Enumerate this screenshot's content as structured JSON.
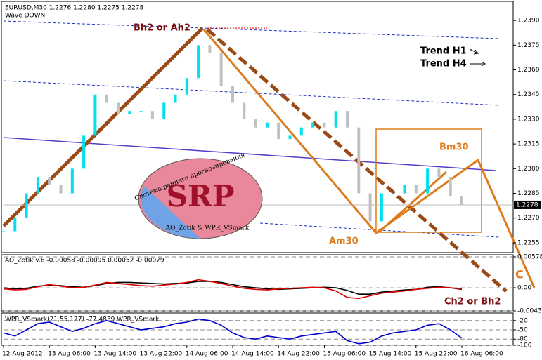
{
  "chart_data": [
    {
      "type": "line",
      "title": "EURUSD,M30 1.2276 1.2280 1.2275 1.2278",
      "subtitle": "Wave DOWN",
      "categories": [
        "12 Aug 2012",
        null,
        null,
        null,
        "13 Aug 06:00",
        null,
        null,
        null,
        "13 Aug 14:00",
        null,
        null,
        null,
        "13 Aug 22:00",
        null,
        null,
        null,
        "14 Aug 06:00",
        null,
        null,
        null,
        "14 Aug 14:00",
        null,
        null,
        null,
        "14 Aug 22:00",
        null,
        null,
        null,
        "15 Aug 06:00",
        null,
        null,
        null,
        "15 Aug 14:00",
        null,
        null,
        null,
        "15 Aug 22:00",
        null,
        null,
        null,
        "16 Aug 06:00"
      ],
      "values": [
        1.2262,
        1.227,
        1.2285,
        1.2295,
        1.229,
        1.2285,
        1.23,
        1.232,
        1.2345,
        1.234,
        1.2333,
        1.2335,
        1.2335,
        1.233,
        1.234,
        1.2345,
        1.2355,
        1.2375,
        1.237,
        1.235,
        1.234,
        1.233,
        1.2325,
        1.2328,
        1.2318,
        1.232,
        1.2325,
        1.2328,
        1.2325,
        1.2335,
        1.2325,
        1.2285,
        1.2268,
        1.2285,
        1.2285,
        1.229,
        1.2285,
        1.23,
        1.2295,
        1.2283,
        1.2278
      ],
      "color": "#00e0ee",
      "ylim": [
        1.2249,
        1.2399
      ],
      "yticks": [
        1.2255,
        {
          "value": 1.227,
          "label": "1.2270"
        },
        1.2285,
        {
          "value": 1.23,
          "label": "1.2300"
        },
        1.2315,
        {
          "value": 1.233,
          "label": "1.2330"
        },
        1.2345,
        {
          "value": 1.236,
          "label": "1.2360"
        },
        1.2375,
        {
          "value": 1.239,
          "label": "1.2390"
        }
      ],
      "annotations": [
        "Bh2  or Ah2",
        "Trend H1",
        "Trend H4",
        "Bm30",
        "Am30",
        "C",
        "Ch2  or Bh2",
        "SRP",
        "Система раннего прогнозирования",
        "AO_Zotik & WPR_VSmark"
      ]
    },
    {
      "type": "line",
      "title": "AO_Zotik v.8 -0.00058 -0.00095 0.00052 -0.00079",
      "series": [
        {
          "color": "#000000",
          "values": [
            0,
            -0.0002,
            -0.0001,
            0.0003,
            0.0005,
            0.0004,
            0.0002,
            0.0001,
            0.0004,
            0.0008,
            0.001,
            0.001,
            0.0009,
            0.0008,
            0.0007,
            0.0008,
            0.0009,
            0.0012,
            0.0012,
            0.001,
            0.0006,
            0.0002,
            0,
            -0.0002,
            -0.0003,
            -0.0002,
            -0.0001,
            0,
            0.0001,
            0,
            -0.0005,
            -0.0012,
            -0.0012,
            -0.0008,
            -0.0006,
            -0.0004,
            -0.0003,
            0.0001,
            0.0002,
            0,
            -0.0003
          ]
        },
        {
          "color": "#dd0000",
          "values": [
            -0.0002,
            -0.0004,
            -0.0003,
            0.0002,
            0.0006,
            0.0003,
            0,
            0.0001,
            0.0005,
            0.001,
            0.0008,
            0.0006,
            0.0004,
            0.0003,
            0.0005,
            0.0007,
            0.001,
            0.0015,
            0.0012,
            0.0008,
            0.0003,
            -0.0001,
            -0.0003,
            -0.0004,
            -0.0002,
            -0.0001,
            0,
            0.0001,
            0,
            -0.0006,
            -0.0018,
            -0.002,
            -0.0015,
            -0.001,
            -0.0008,
            -0.0006,
            -0.0003,
            -0.0001,
            0.0001,
            0,
            -0.0002
          ]
        }
      ],
      "ylim": [
        -0.00432,
        0.00578
      ],
      "yticks": [
        0.00578,
        {
          "value": 0,
          "label": "0.00"
        },
        -0.00432
      ]
    },
    {
      "type": "line",
      "title": "WPR_VSmark(21,55,177) -77.4839 WPR_VSmark",
      "series": [
        {
          "color": "#0000cc",
          "values": [
            -60,
            -70,
            -50,
            -30,
            -25,
            -40,
            -55,
            -45,
            -30,
            -20,
            -30,
            -40,
            -50,
            -45,
            -40,
            -30,
            -25,
            -15,
            -20,
            -35,
            -60,
            -75,
            -80,
            -70,
            -75,
            -80,
            -70,
            -65,
            -60,
            -55,
            -85,
            -95,
            -90,
            -70,
            -60,
            -55,
            -50,
            -35,
            -30,
            -50,
            -77
          ]
        }
      ],
      "ylim": [
        -100,
        0
      ],
      "yticks": [
        -20,
        -50,
        -80,
        -100
      ]
    }
  ]
}
